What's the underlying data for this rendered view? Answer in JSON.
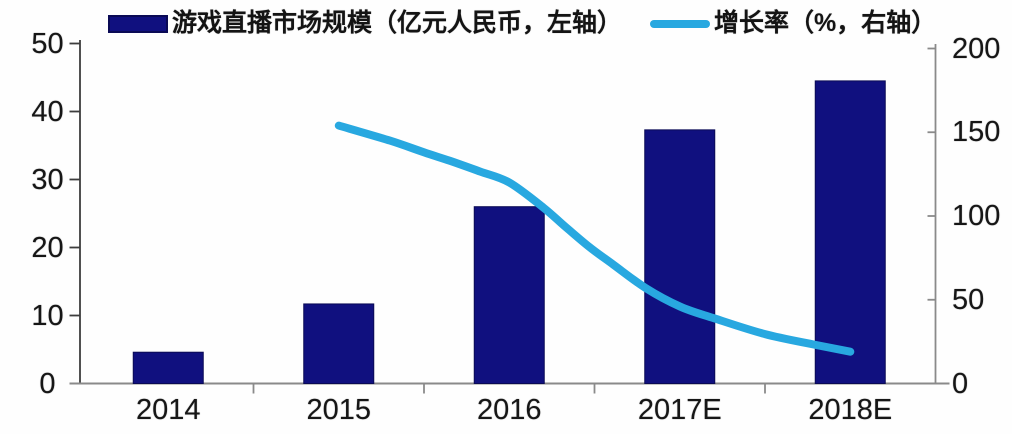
{
  "chart_data": {
    "type": "bar+line",
    "categories": [
      "2014",
      "2015",
      "2016",
      "2017E",
      "2018E"
    ],
    "series": [
      {
        "name": "游戏直播市场规模（亿元人民币，左轴）",
        "type": "bar",
        "axis": "left",
        "values": [
          4.6,
          11.7,
          26,
          37.3,
          44.5
        ],
        "color": "#10107f",
        "border_color": "#0a0a55"
      },
      {
        "name": "增长率（%，右轴）",
        "type": "line",
        "axis": "right",
        "values": [
          null,
          154,
          120,
          46,
          19
        ],
        "color": "#28a8e0",
        "shape_points": [
          [
            1,
            154
          ],
          [
            1.3,
            145
          ],
          [
            1.5,
            138
          ],
          [
            1.65,
            133
          ],
          [
            1.83,
            126.5
          ],
          [
            2,
            120
          ],
          [
            2.2,
            105
          ],
          [
            2.33,
            93.5
          ],
          [
            2.47,
            81.5
          ],
          [
            2.61,
            71
          ],
          [
            2.8,
            57
          ],
          [
            3,
            46
          ],
          [
            3.2,
            39
          ],
          [
            3.5,
            29.5
          ],
          [
            3.8,
            23
          ],
          [
            4,
            19
          ]
        ]
      }
    ],
    "left_axis": {
      "range": [
        0,
        50
      ],
      "ticks": [
        0,
        10,
        20,
        30,
        40,
        50
      ]
    },
    "right_axis": {
      "range": [
        0,
        200
      ],
      "ticks": [
        0,
        50,
        100,
        150,
        200
      ]
    },
    "legend_position": "top",
    "grid": false,
    "title": "",
    "background": "#ffffff"
  }
}
